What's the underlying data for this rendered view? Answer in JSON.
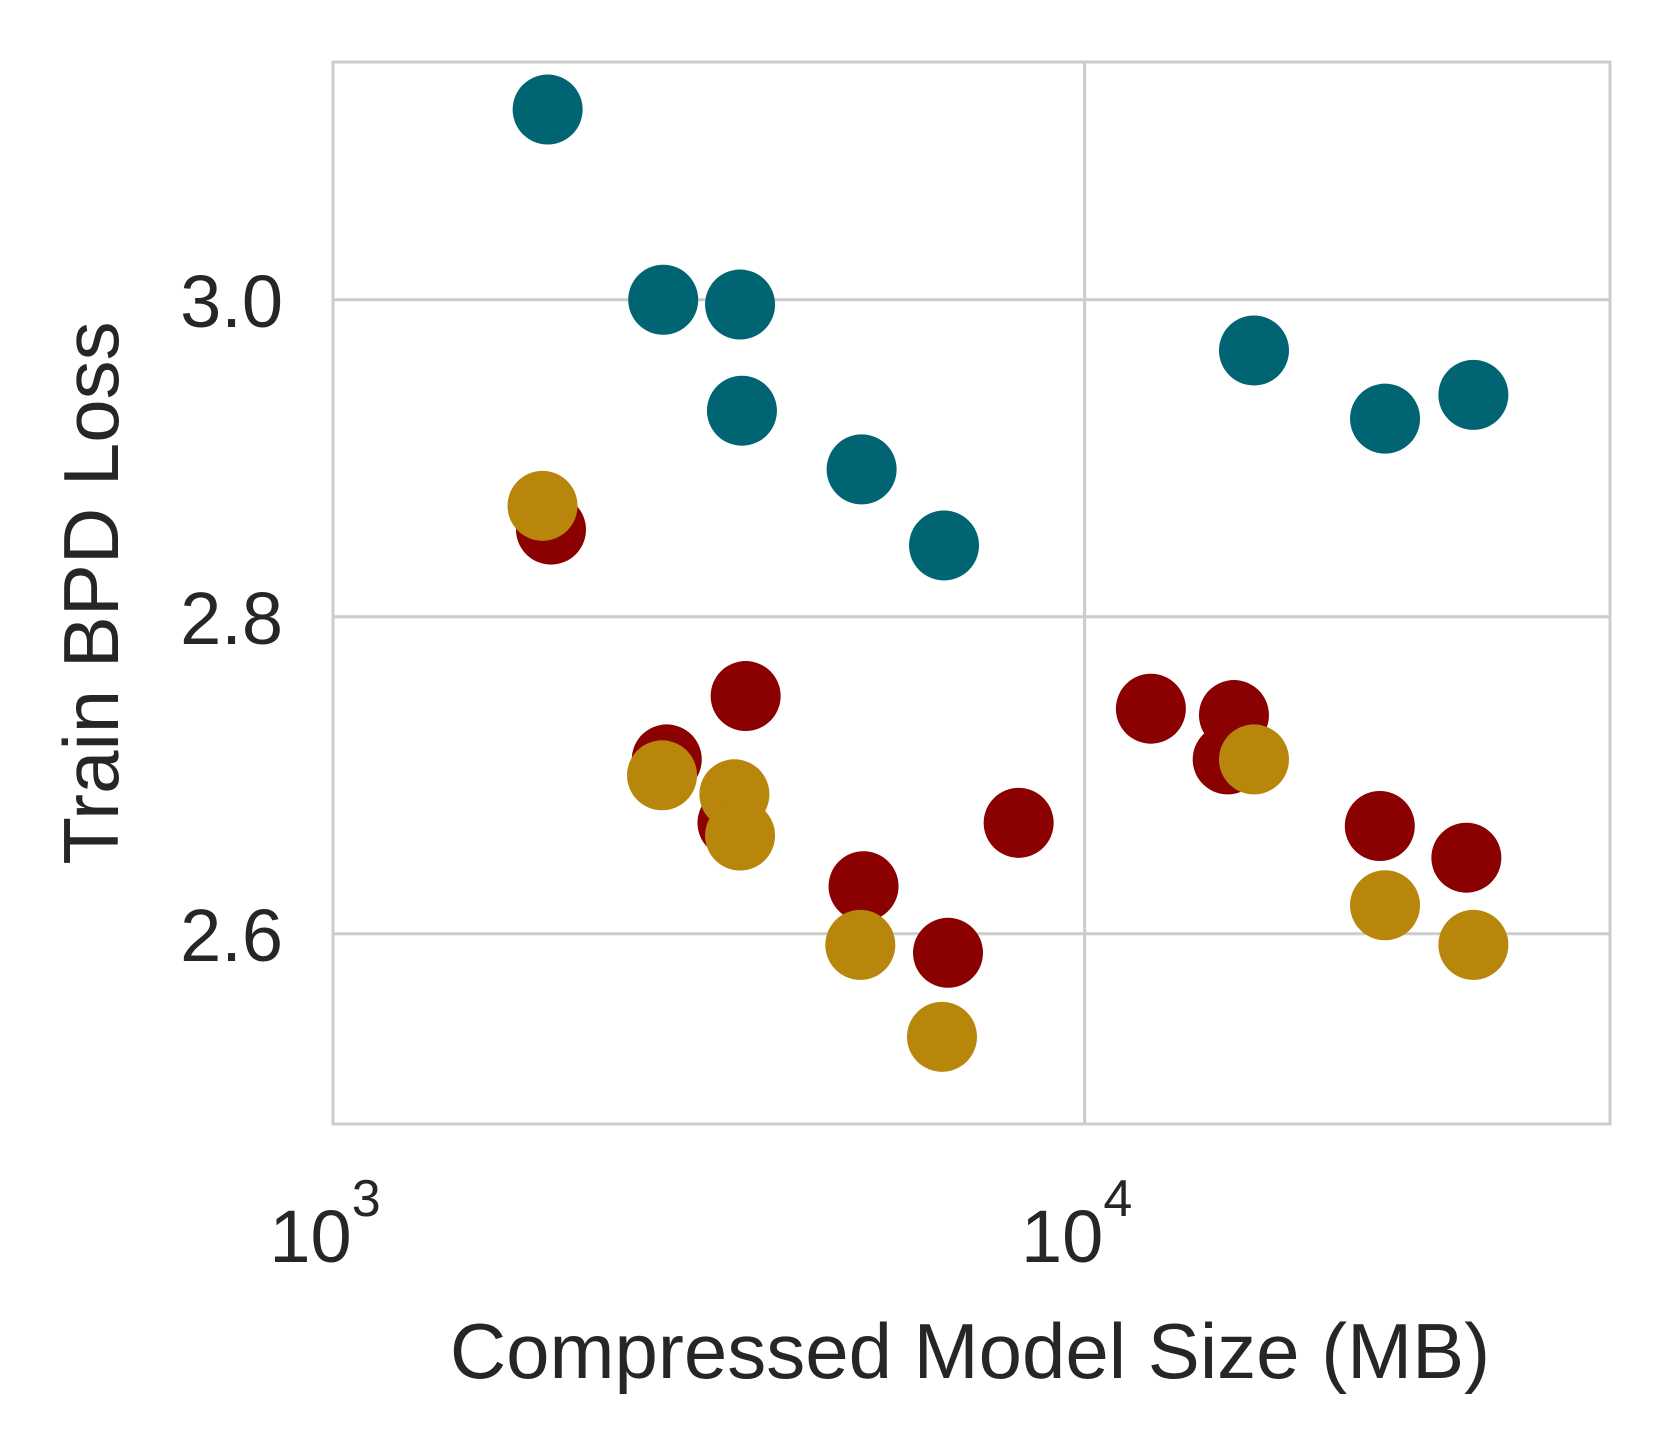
{
  "chart_data": {
    "type": "scatter",
    "title": "",
    "xlabel": "Compressed Model Size (MB)",
    "ylabel": "Train BPD Loss",
    "xscale": "log",
    "xlim": [
      1000,
      50000
    ],
    "ylim": [
      2.48,
      3.15
    ],
    "grid": true,
    "legend": "none",
    "x_ticks": [
      {
        "value": 1000,
        "base": "10",
        "exp": "3"
      },
      {
        "value": 10000,
        "base": "10",
        "exp": "4"
      }
    ],
    "y_ticks": [
      {
        "value": 2.6,
        "label": "2.6"
      },
      {
        "value": 2.8,
        "label": "2.8"
      },
      {
        "value": 3.0,
        "label": "3.0"
      }
    ],
    "series": [
      {
        "color": "#006473",
        "points": [
          {
            "x": 1930,
            "y": 3.12
          },
          {
            "x": 2750,
            "y": 3.0
          },
          {
            "x": 3480,
            "y": 2.997
          },
          {
            "x": 3500,
            "y": 2.93
          },
          {
            "x": 5050,
            "y": 2.893
          },
          {
            "x": 6500,
            "y": 2.845
          },
          {
            "x": 16800,
            "y": 2.968
          },
          {
            "x": 25100,
            "y": 2.925
          },
          {
            "x": 32900,
            "y": 2.94
          }
        ]
      },
      {
        "color": "#8b0000",
        "points": [
          {
            "x": 1950,
            "y": 2.855
          },
          {
            "x": 2780,
            "y": 2.71
          },
          {
            "x": 3540,
            "y": 2.75
          },
          {
            "x": 3400,
            "y": 2.67
          },
          {
            "x": 5080,
            "y": 2.63
          },
          {
            "x": 6580,
            "y": 2.588
          },
          {
            "x": 8170,
            "y": 2.67
          },
          {
            "x": 12250,
            "y": 2.742
          },
          {
            "x": 15800,
            "y": 2.738
          },
          {
            "x": 15500,
            "y": 2.71
          },
          {
            "x": 24700,
            "y": 2.668
          },
          {
            "x": 32200,
            "y": 2.648
          }
        ]
      },
      {
        "color": "#b8860b",
        "points": [
          {
            "x": 1900,
            "y": 2.87
          },
          {
            "x": 2740,
            "y": 2.7
          },
          {
            "x": 3420,
            "y": 2.688
          },
          {
            "x": 3480,
            "y": 2.662
          },
          {
            "x": 5030,
            "y": 2.593
          },
          {
            "x": 6460,
            "y": 2.535
          },
          {
            "x": 16800,
            "y": 2.71
          },
          {
            "x": 25100,
            "y": 2.618
          },
          {
            "x": 32900,
            "y": 2.593
          }
        ]
      }
    ]
  }
}
